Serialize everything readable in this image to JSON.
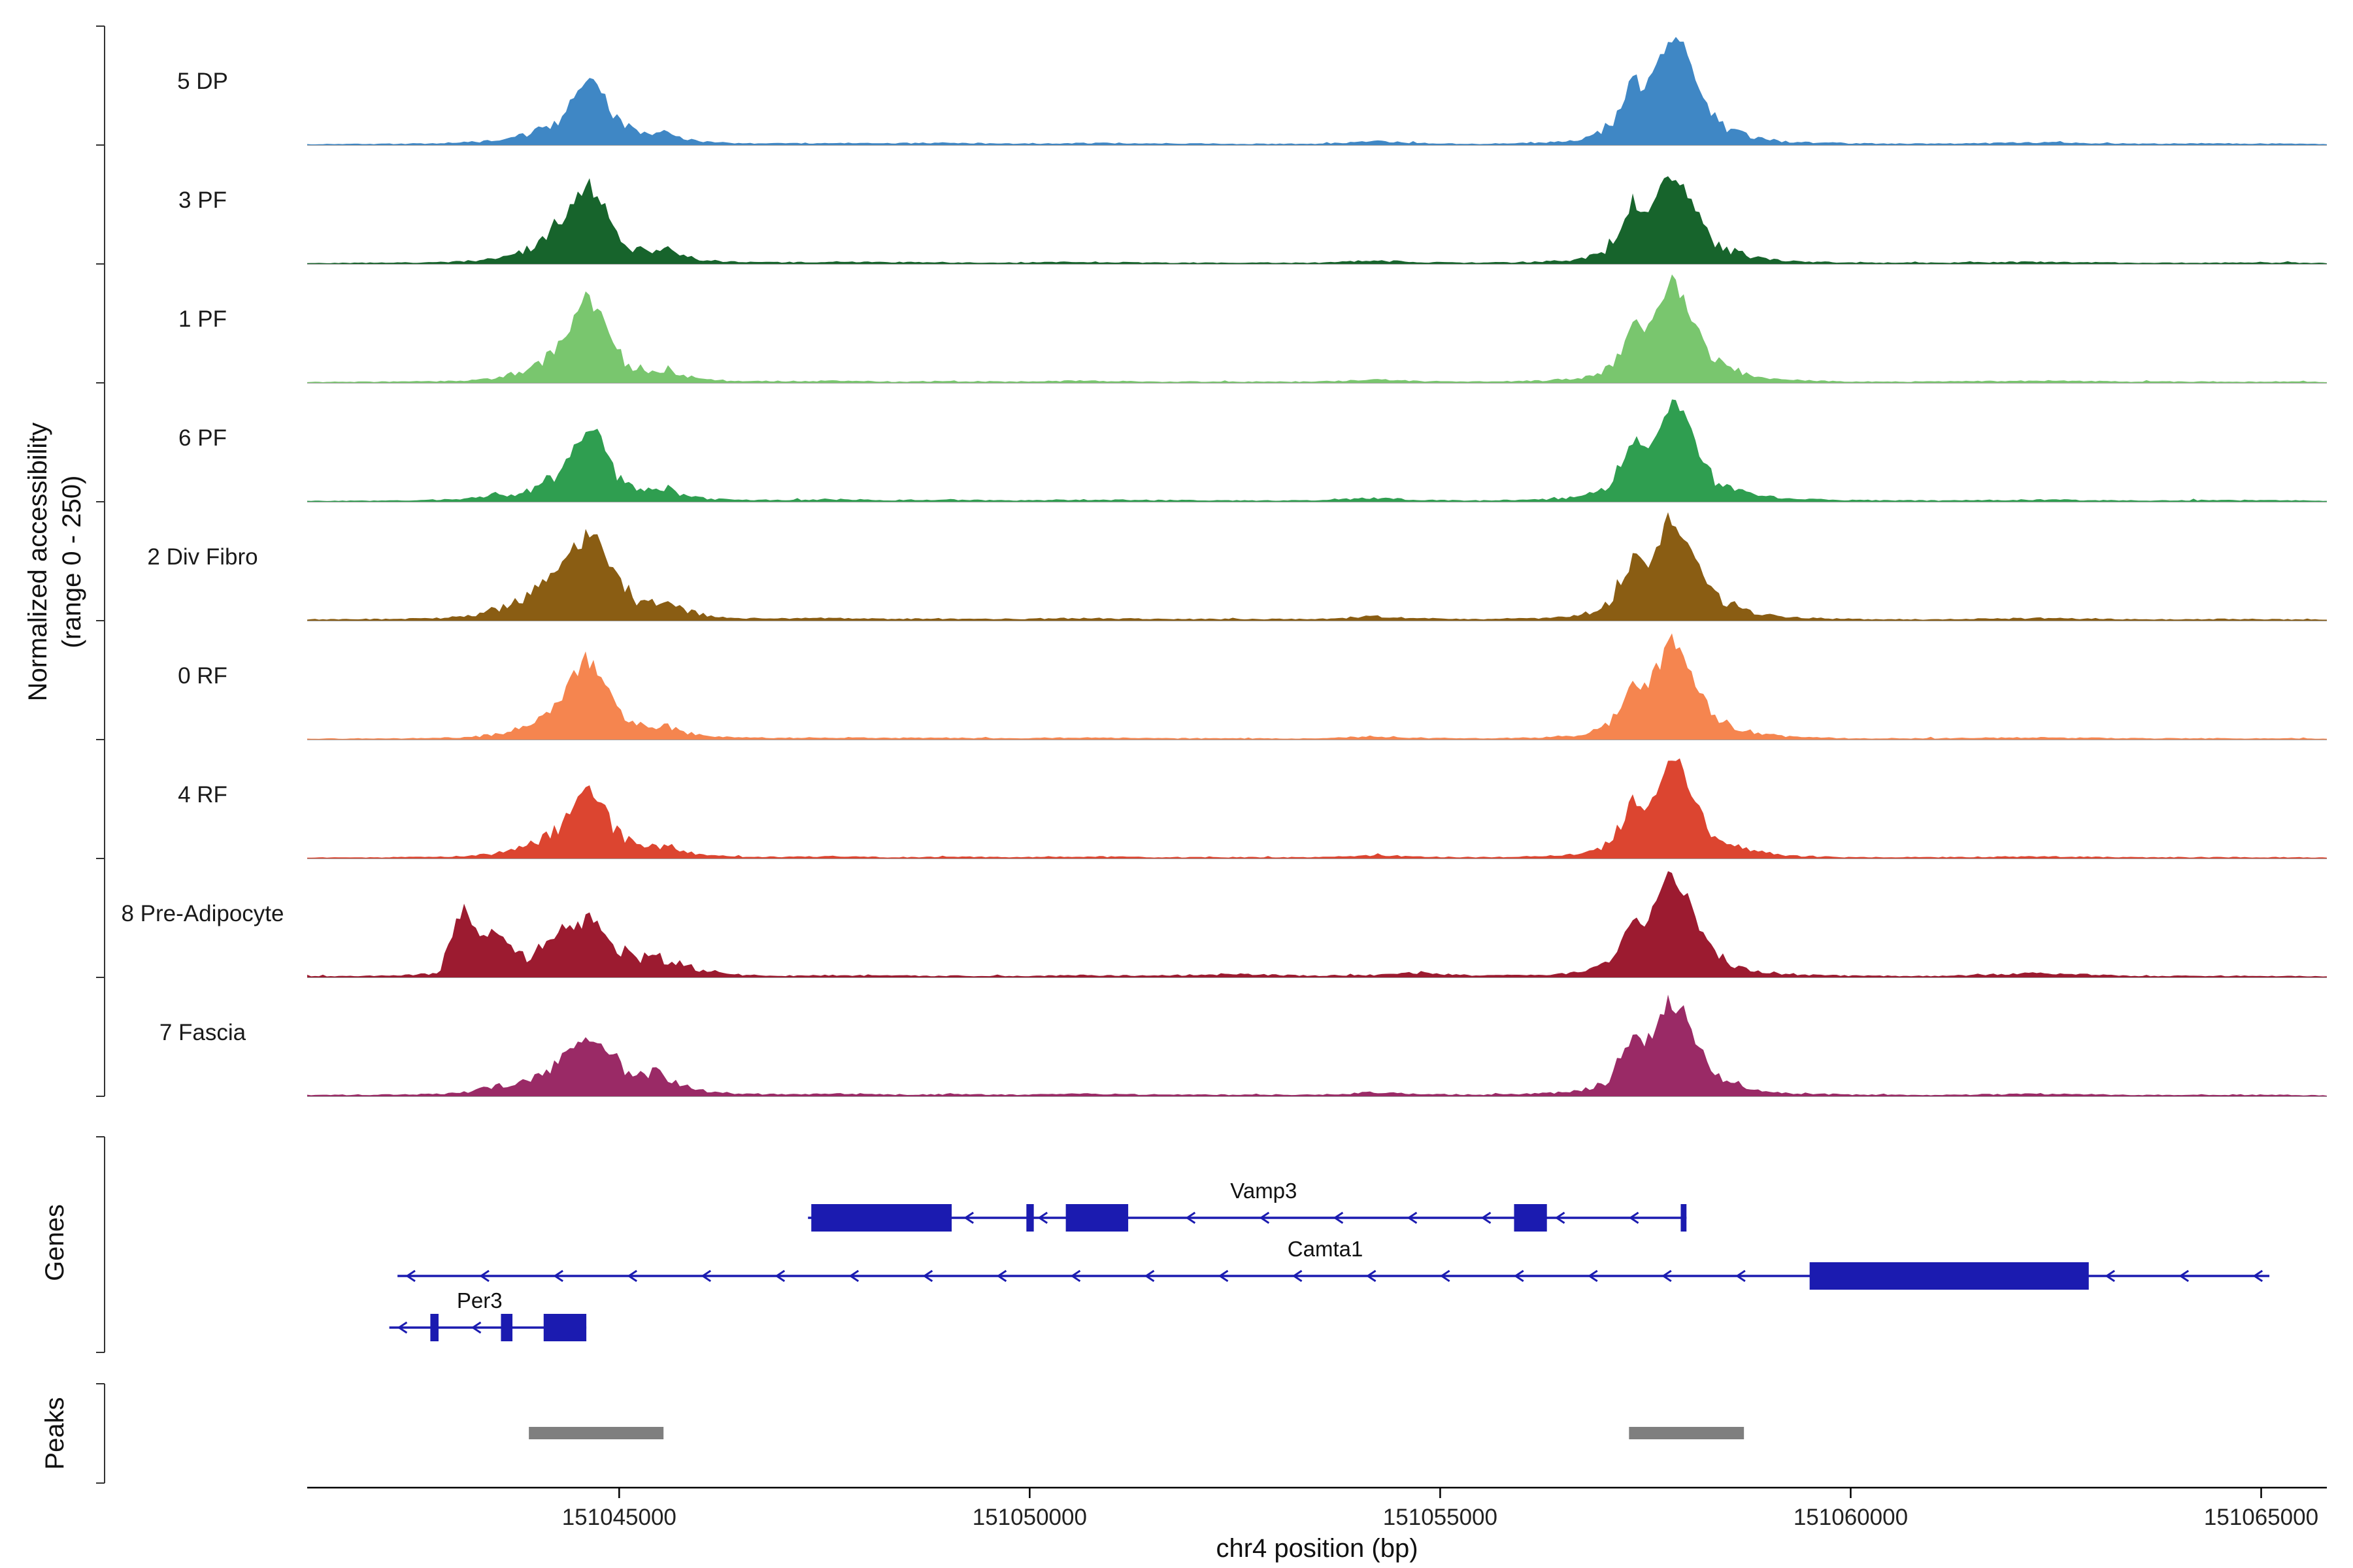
{
  "figure": {
    "y_axis_label_line1": "Normalized accessibility",
    "y_axis_label_line2": "(range 0 - 250)",
    "genes_section_label": "Genes",
    "peaks_section_label": "Peaks",
    "x_axis_title": "chr4 position (bp)"
  },
  "chart_data": {
    "type": "area",
    "title": "",
    "xlabel": "chr4 position (bp)",
    "ylabel": "Normalized accessibility (range 0 - 250)",
    "x_domain_bp": [
      151041200,
      151065800
    ],
    "ylim": [
      0,
      250
    ],
    "grid": "off",
    "baseline_color": "#9e9e9e",
    "gene_color": "#1b1bb0",
    "peak_color": "#7f7f7f",
    "axis_color": "#000000",
    "x_ticks": [
      {
        "bp": 151045000,
        "label": "151045000"
      },
      {
        "bp": 151050000,
        "label": "151050000"
      },
      {
        "bp": 151055000,
        "label": "151055000"
      },
      {
        "bp": 151060000,
        "label": "151060000"
      },
      {
        "bp": 151065000,
        "label": "151065000"
      }
    ],
    "x_grid_bp": [
      151041200,
      151042300,
      151042800,
      151043100,
      151043300,
      151043500,
      151043700,
      151043900,
      151044100,
      151044300,
      151044450,
      151044600,
      151044750,
      151044900,
      151045050,
      151045200,
      151045400,
      151045600,
      151045800,
      151046100,
      151046500,
      151047000,
      151047600,
      151048300,
      151049000,
      151049800,
      151050600,
      151051500,
      151052500,
      151053500,
      151054200,
      151054800,
      151055500,
      151056200,
      151056700,
      151057000,
      151057200,
      151057350,
      151057500,
      151057650,
      151057800,
      151057950,
      151058100,
      151058300,
      151058500,
      151058800,
      151059200,
      151060000,
      151061000,
      151062300,
      151063500,
      151064500,
      151065500,
      151065800
    ],
    "tracks": [
      {
        "label": "5 DP",
        "color": "#3f87c5",
        "values": [
          2,
          3,
          4,
          6,
          8,
          11,
          16,
          26,
          40,
          70,
          110,
          152,
          138,
          82,
          46,
          30,
          26,
          31,
          15,
          7,
          4,
          4,
          5,
          4,
          5,
          3,
          5,
          4,
          3,
          3,
          9,
          4,
          3,
          5,
          11,
          34,
          90,
          158,
          128,
          182,
          248,
          228,
          148,
          68,
          38,
          18,
          8,
          4,
          3,
          6,
          3,
          4,
          3,
          2
        ]
      },
      {
        "label": "3 PF",
        "color": "#17642c",
        "values": [
          2,
          3,
          4,
          6,
          9,
          14,
          22,
          35,
          58,
          98,
          148,
          185,
          164,
          94,
          54,
          34,
          30,
          34,
          17,
          8,
          4,
          4,
          5,
          4,
          4,
          3,
          5,
          3,
          3,
          3,
          8,
          4,
          3,
          5,
          10,
          30,
          80,
          148,
          120,
          168,
          215,
          198,
          130,
          60,
          34,
          17,
          7,
          3,
          3,
          5,
          3,
          3,
          3,
          2
        ]
      },
      {
        "label": "1 PF",
        "color": "#79c66e",
        "values": [
          2,
          3,
          4,
          5,
          8,
          12,
          20,
          32,
          55,
          95,
          150,
          198,
          172,
          98,
          54,
          32,
          28,
          32,
          16,
          7,
          4,
          4,
          5,
          3,
          4,
          3,
          5,
          3,
          3,
          3,
          8,
          4,
          3,
          5,
          10,
          28,
          76,
          142,
          116,
          164,
          232,
          212,
          138,
          64,
          36,
          17,
          7,
          3,
          3,
          5,
          3,
          3,
          3,
          2
        ]
      },
      {
        "label": "6 PF",
        "color": "#2f9e50",
        "values": [
          2,
          3,
          5,
          7,
          12,
          18,
          16,
          26,
          45,
          80,
          128,
          170,
          150,
          88,
          50,
          31,
          27,
          31,
          15,
          7,
          5,
          4,
          6,
          4,
          5,
          3,
          5,
          4,
          3,
          3,
          9,
          4,
          3,
          5,
          11,
          30,
          80,
          146,
          120,
          170,
          224,
          204,
          134,
          60,
          34,
          17,
          7,
          4,
          3,
          5,
          3,
          4,
          3,
          2
        ]
      },
      {
        "label": "2 Div Fibro",
        "color": "#8a5d13",
        "values": [
          3,
          4,
          6,
          9,
          15,
          26,
          42,
          62,
          92,
          132,
          172,
          196,
          186,
          132,
          82,
          52,
          40,
          46,
          25,
          10,
          6,
          5,
          6,
          4,
          5,
          4,
          6,
          4,
          4,
          4,
          10,
          5,
          4,
          6,
          12,
          32,
          86,
          150,
          126,
          176,
          238,
          218,
          144,
          70,
          40,
          20,
          8,
          4,
          3,
          6,
          3,
          4,
          3,
          2
        ]
      },
      {
        "label": "0 RF",
        "color": "#f5854f",
        "values": [
          2,
          3,
          4,
          5,
          8,
          13,
          20,
          33,
          58,
          100,
          150,
          186,
          166,
          96,
          52,
          33,
          28,
          33,
          16,
          7,
          5,
          4,
          5,
          4,
          4,
          3,
          5,
          3,
          3,
          3,
          8,
          4,
          3,
          5,
          10,
          30,
          80,
          146,
          118,
          168,
          238,
          216,
          140,
          65,
          38,
          18,
          7,
          3,
          3,
          5,
          3,
          3,
          3,
          2
        ]
      },
      {
        "label": "4 RF",
        "color": "#dc4530",
        "values": [
          2,
          3,
          4,
          5,
          8,
          13,
          19,
          30,
          50,
          85,
          130,
          162,
          146,
          86,
          48,
          30,
          26,
          30,
          15,
          7,
          4,
          4,
          5,
          3,
          4,
          3,
          5,
          3,
          3,
          3,
          8,
          4,
          3,
          5,
          10,
          28,
          76,
          140,
          115,
          164,
          226,
          206,
          132,
          60,
          35,
          17,
          7,
          3,
          3,
          5,
          3,
          3,
          3,
          2
        ]
      },
      {
        "label": "8 Pre-Adipocyte",
        "color": "#9c1b30",
        "values": [
          3,
          4,
          10,
          170,
          85,
          112,
          56,
          50,
          80,
          118,
          108,
          138,
          128,
          88,
          58,
          46,
          52,
          40,
          28,
          12,
          6,
          4,
          5,
          4,
          4,
          3,
          5,
          4,
          8,
          4,
          6,
          10,
          4,
          6,
          12,
          30,
          82,
          148,
          122,
          170,
          234,
          210,
          138,
          64,
          36,
          18,
          7,
          4,
          3,
          10,
          3,
          4,
          3,
          2
        ]
      },
      {
        "label": "7 Fascia",
        "color": "#9a2a66",
        "values": [
          3,
          4,
          6,
          9,
          16,
          26,
          32,
          42,
          60,
          90,
          120,
          142,
          132,
          96,
          62,
          46,
          56,
          44,
          25,
          10,
          6,
          5,
          6,
          4,
          5,
          4,
          6,
          4,
          4,
          4,
          9,
          5,
          4,
          6,
          12,
          32,
          84,
          148,
          124,
          168,
          220,
          200,
          134,
          64,
          38,
          18,
          8,
          4,
          3,
          6,
          3,
          4,
          3,
          2
        ]
      }
    ],
    "genes": [
      {
        "name": "Vamp3",
        "strand": "-",
        "row": 0,
        "span_bp": [
          151047300,
          151058000
        ],
        "exons_bp": [
          [
            151047340,
            151049050
          ],
          [
            151049960,
            151050050
          ],
          [
            151050440,
            151051200
          ],
          [
            151055900,
            151056300
          ],
          [
            151057930,
            151058000
          ]
        ],
        "label_bp": 151052850
      },
      {
        "name": "Camta1",
        "strand": "-",
        "row": 1,
        "span_bp": [
          151042300,
          151065100
        ],
        "exons_bp": [
          [
            151059500,
            151062900
          ]
        ],
        "label_bp": 151053600
      },
      {
        "name": "Per3",
        "strand": "-",
        "row": 2,
        "span_bp": [
          151042200,
          151044600
        ],
        "exons_bp": [
          [
            151042700,
            151042800
          ],
          [
            151043560,
            151043700
          ],
          [
            151044080,
            151044600
          ]
        ],
        "label_bp": 151043300
      }
    ],
    "peaks_bp": [
      [
        151043900,
        151045540
      ],
      [
        151057300,
        151058700
      ]
    ]
  }
}
